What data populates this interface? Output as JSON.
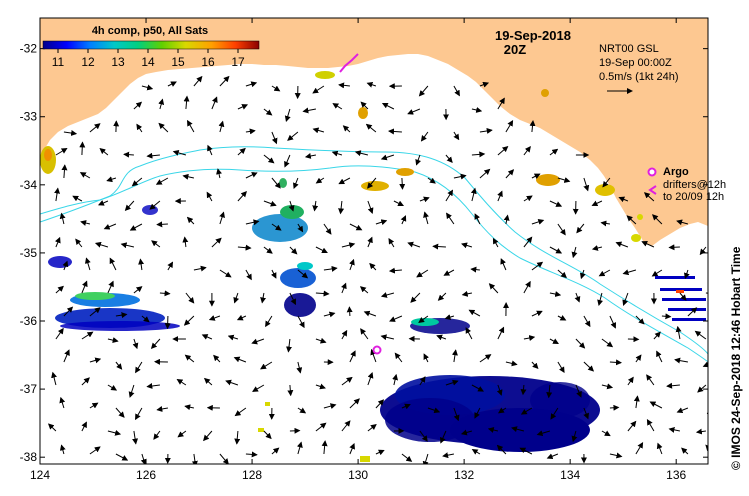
{
  "map": {
    "title_date": "19-Sep-2018",
    "title_time": "20Z",
    "credit": "© IMOS 24-Sep-2018 12:46 Hobart Time"
  },
  "colorbar": {
    "label": "4h comp, p50, All Sats",
    "min": 10.5,
    "max": 17.7,
    "ticks": [
      "11",
      "12",
      "13",
      "14",
      "15",
      "16",
      "17"
    ],
    "tick_values": [
      11,
      12,
      13,
      14,
      15,
      16,
      17
    ],
    "colors": [
      "#00008b",
      "#0000ff",
      "#0080ff",
      "#00c8c8",
      "#00d080",
      "#60d000",
      "#d8d800",
      "#ffa000",
      "#ff4000",
      "#8b0000"
    ]
  },
  "currents_legend": {
    "product": "NRT00 GSL",
    "time": "19-Sep 00:00Z",
    "scale": "0.5m/s (1kt 24h)"
  },
  "argo_legend": {
    "argo_label": "Argo",
    "drifters_label": "drifters@12h",
    "drifters_range": "to 20/09 12h"
  },
  "axes": {
    "x_labels": [
      "124",
      "126",
      "128",
      "130",
      "132",
      "134",
      "136"
    ],
    "x_values": [
      124,
      126,
      128,
      130,
      132,
      134,
      136
    ],
    "y_labels": [
      "-32",
      "-33",
      "-34",
      "-35",
      "-36",
      "-37",
      "-38"
    ],
    "y_values": [
      -32,
      -33,
      -34,
      -35,
      -36,
      -37,
      -38
    ],
    "lon_range": [
      124,
      136.6
    ],
    "lat_range": [
      -38.1,
      -31.55
    ]
  },
  "colors": {
    "land": "#fdc891",
    "isobath": "#3ad6e8",
    "argo": "#e020e0",
    "ocean": "#ffffff"
  }
}
